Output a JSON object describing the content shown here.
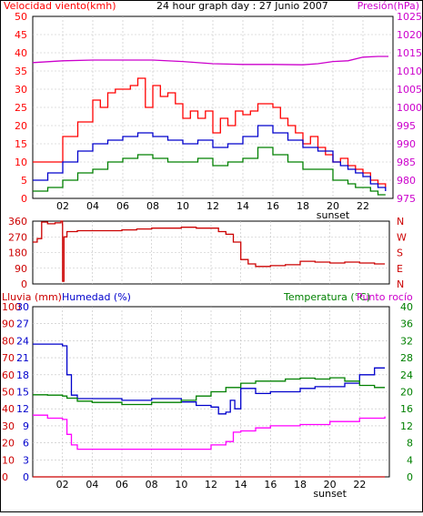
{
  "colors": {
    "background": "#ffffff",
    "grid": "#c0c0c0",
    "axis": "#000000",
    "wind_gust": "#ff0000",
    "wind_avg": "#0000cc",
    "wind_min": "#008000",
    "pressure": "#cc00cc",
    "direction": "#cc0000",
    "rain": "#cc0000",
    "humidity": "#0000cc",
    "temperature": "#008000",
    "dewpoint": "#ff00ff"
  },
  "chart_data": [
    {
      "id": "wind-pressure",
      "type": "line",
      "title": "24 hour graph day : 27 Junio 2007",
      "ylabel": "Velocidad viento(kmh)",
      "y2label": "Presión(hPa)",
      "ylim": [
        0,
        50
      ],
      "y2lim": [
        975,
        1025
      ],
      "xlim": [
        0,
        24
      ],
      "x_ticks": [
        "02",
        "04",
        "06",
        "08",
        "10",
        "12",
        "14",
        "16",
        "18",
        "20",
        "22"
      ],
      "x_annotation": "sunset",
      "y_ticks": [
        0,
        5,
        10,
        15,
        20,
        25,
        30,
        35,
        40,
        45,
        50
      ],
      "y2_ticks": [
        975,
        980,
        985,
        990,
        995,
        1000,
        1005,
        1010,
        1015,
        1020,
        1025
      ],
      "grid": true,
      "series": [
        {
          "key": "gust",
          "x": [
            0,
            1,
            2,
            3,
            4,
            4.5,
            5,
            5.5,
            6,
            6.5,
            7,
            7.5,
            8,
            8.5,
            9,
            9.5,
            10,
            10.5,
            11,
            11.5,
            12,
            12.5,
            13,
            13.5,
            14,
            14.5,
            15,
            15.5,
            16,
            16.5,
            17,
            17.5,
            18,
            18.5,
            19,
            19.5,
            20,
            20.5,
            21,
            21.5,
            22,
            22.5,
            23,
            23.5
          ],
          "values": [
            10,
            10,
            17,
            21,
            27,
            25,
            29,
            30,
            30,
            31,
            33,
            25,
            31,
            28,
            29,
            26,
            22,
            24,
            22,
            24,
            18,
            22,
            20,
            24,
            23,
            24,
            26,
            26,
            25,
            22,
            20,
            18,
            15,
            17,
            14,
            12,
            10,
            11,
            9,
            8,
            7,
            5,
            4,
            3
          ]
        },
        {
          "key": "avg",
          "x": [
            0,
            1,
            2,
            3,
            4,
            5,
            6,
            7,
            8,
            9,
            10,
            11,
            12,
            13,
            14,
            15,
            16,
            17,
            18,
            19,
            20,
            20.5,
            21,
            21.5,
            22,
            22.5,
            23,
            23.5
          ],
          "values": [
            5,
            7,
            10,
            13,
            15,
            16,
            17,
            18,
            17,
            16,
            15,
            16,
            14,
            15,
            17,
            20,
            18,
            16,
            14,
            13,
            10,
            9,
            8,
            7,
            6,
            4,
            3,
            2
          ]
        },
        {
          "key": "min",
          "x": [
            0,
            1,
            2,
            3,
            4,
            5,
            6,
            7,
            8,
            9,
            10,
            11,
            12,
            13,
            14,
            15,
            16,
            17,
            18,
            19,
            20,
            20.5,
            21,
            21.5,
            22,
            22.5,
            23,
            23.5
          ],
          "values": [
            2,
            3,
            5,
            7,
            8,
            10,
            11,
            12,
            11,
            10,
            10,
            11,
            9,
            10,
            11,
            14,
            12,
            10,
            8,
            8,
            5,
            5,
            4,
            3,
            3,
            2,
            1,
            1
          ]
        },
        {
          "key": "pressure",
          "x": [
            0,
            2,
            4,
            6,
            8,
            10,
            12,
            14,
            16,
            18,
            19,
            20,
            21,
            22,
            23,
            23.7
          ],
          "values": [
            1012.3,
            1012.8,
            1013.0,
            1013.0,
            1013.0,
            1012.6,
            1012.0,
            1011.8,
            1011.8,
            1011.7,
            1012.0,
            1012.6,
            1012.8,
            1013.8,
            1014.0,
            1014.0
          ]
        }
      ]
    },
    {
      "id": "wind-direction",
      "type": "line",
      "y_ticks": [
        0,
        90,
        180,
        270,
        360
      ],
      "ylim": [
        0,
        360
      ],
      "xlim": [
        0,
        24
      ],
      "right_labels": [
        "N",
        "W",
        "S",
        "E",
        "N"
      ],
      "grid": true,
      "series": [
        {
          "key": "direction",
          "x": [
            0,
            0.3,
            0.6,
            1,
            1.5,
            1.9,
            2,
            2.01,
            2.1,
            2.3,
            3,
            4,
            5,
            6,
            7,
            8,
            9,
            10,
            11,
            12,
            12.5,
            13,
            13.5,
            14,
            14.5,
            15,
            16,
            17,
            18,
            19,
            20,
            21,
            22,
            23,
            23.7
          ],
          "values": [
            240,
            260,
            355,
            345,
            350,
            360,
            340,
            15,
            270,
            300,
            305,
            305,
            305,
            310,
            315,
            320,
            320,
            325,
            320,
            320,
            300,
            285,
            240,
            140,
            115,
            100,
            105,
            110,
            130,
            125,
            120,
            125,
            120,
            115,
            115
          ]
        }
      ]
    },
    {
      "id": "rain-humidity-temp",
      "type": "line",
      "left_label_1": "Lluvia (mm)",
      "left_label_2": "Humedad (%)",
      "right_label_1": "Temperatura (°C)",
      "right_label_2": "Punto rocío",
      "rain_ticks": [
        0,
        10,
        20,
        30,
        40,
        50,
        60,
        70,
        80,
        90,
        100
      ],
      "rain_lim": [
        0,
        100
      ],
      "temp_ticks": [
        0,
        3,
        6,
        9,
        12,
        15,
        18,
        21,
        24,
        27,
        30
      ],
      "temp_lim": [
        0,
        30
      ],
      "right_ticks": [
        0,
        4,
        8,
        12,
        16,
        20,
        24,
        28,
        32,
        36,
        40
      ],
      "right_lim": [
        0,
        40
      ],
      "xlim": [
        0,
        24
      ],
      "grid": true,
      "series": [
        {
          "key": "rain",
          "x": [
            0,
            23.7
          ],
          "values": [
            0,
            0
          ]
        },
        {
          "key": "humidity",
          "x": [
            0,
            1,
            2,
            2.3,
            2.6,
            3,
            4,
            6,
            8,
            10,
            11,
            12,
            12.5,
            13,
            13.3,
            13.6,
            14,
            15,
            16,
            17,
            18,
            19,
            20,
            21,
            22,
            23,
            23.7
          ],
          "values": [
            78,
            78,
            77,
            60,
            48,
            46,
            46,
            45,
            46,
            44,
            42,
            41,
            37,
            38,
            45,
            40,
            52,
            49,
            50,
            50,
            52,
            53,
            53,
            55,
            60,
            64,
            64
          ]
        },
        {
          "key": "temperature",
          "x": [
            0,
            1,
            2,
            2.3,
            3,
            4,
            6,
            8,
            10,
            11,
            12,
            13,
            14,
            15,
            16,
            17,
            18,
            19,
            20,
            21,
            22,
            23,
            23.7
          ],
          "values": [
            19.3,
            19.2,
            19.0,
            18.5,
            17.8,
            17.5,
            17.0,
            17.5,
            18.0,
            19.0,
            20.0,
            21.0,
            22.0,
            22.5,
            22.5,
            23.0,
            23.2,
            23.0,
            23.3,
            22.5,
            21.5,
            21.0,
            21.0
          ]
        },
        {
          "key": "dewpoint",
          "x": [
            0,
            1,
            2,
            2.3,
            2.6,
            3,
            4,
            6,
            8,
            10,
            12,
            13,
            13.5,
            14,
            15,
            16,
            18,
            20,
            22,
            23.7
          ],
          "values": [
            14.5,
            13.8,
            13.5,
            10,
            7.5,
            6.5,
            6.5,
            6.5,
            6.5,
            6.5,
            7.5,
            8.3,
            10.5,
            10.8,
            11.5,
            12,
            12.3,
            13.0,
            13.8,
            14.2
          ]
        }
      ]
    }
  ]
}
